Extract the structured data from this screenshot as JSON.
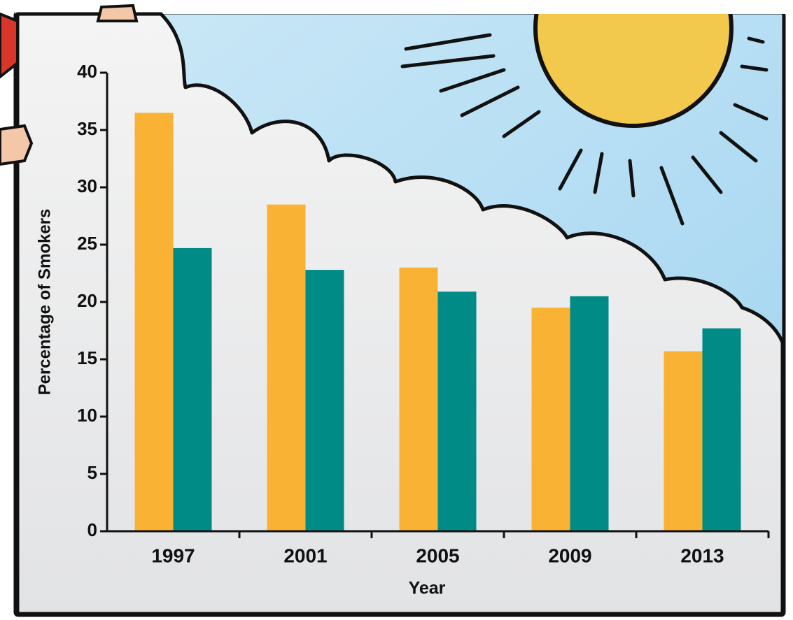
{
  "chart_data": {
    "type": "bar",
    "x_label": "Year",
    "y_label": "Percentage of Smokers",
    "categories": [
      "1997",
      "2001",
      "2005",
      "2009",
      "2013"
    ],
    "series": [
      {
        "color": "#f9b233",
        "values": [
          36.5,
          28.5,
          23.0,
          19.5,
          15.7
        ]
      },
      {
        "color": "#008b87",
        "values": [
          24.7,
          22.8,
          20.9,
          20.5,
          17.7
        ]
      }
    ],
    "ylim": [
      0,
      40
    ],
    "yticks": [
      0,
      5,
      10,
      15,
      20,
      25,
      30,
      35,
      40
    ]
  }
}
